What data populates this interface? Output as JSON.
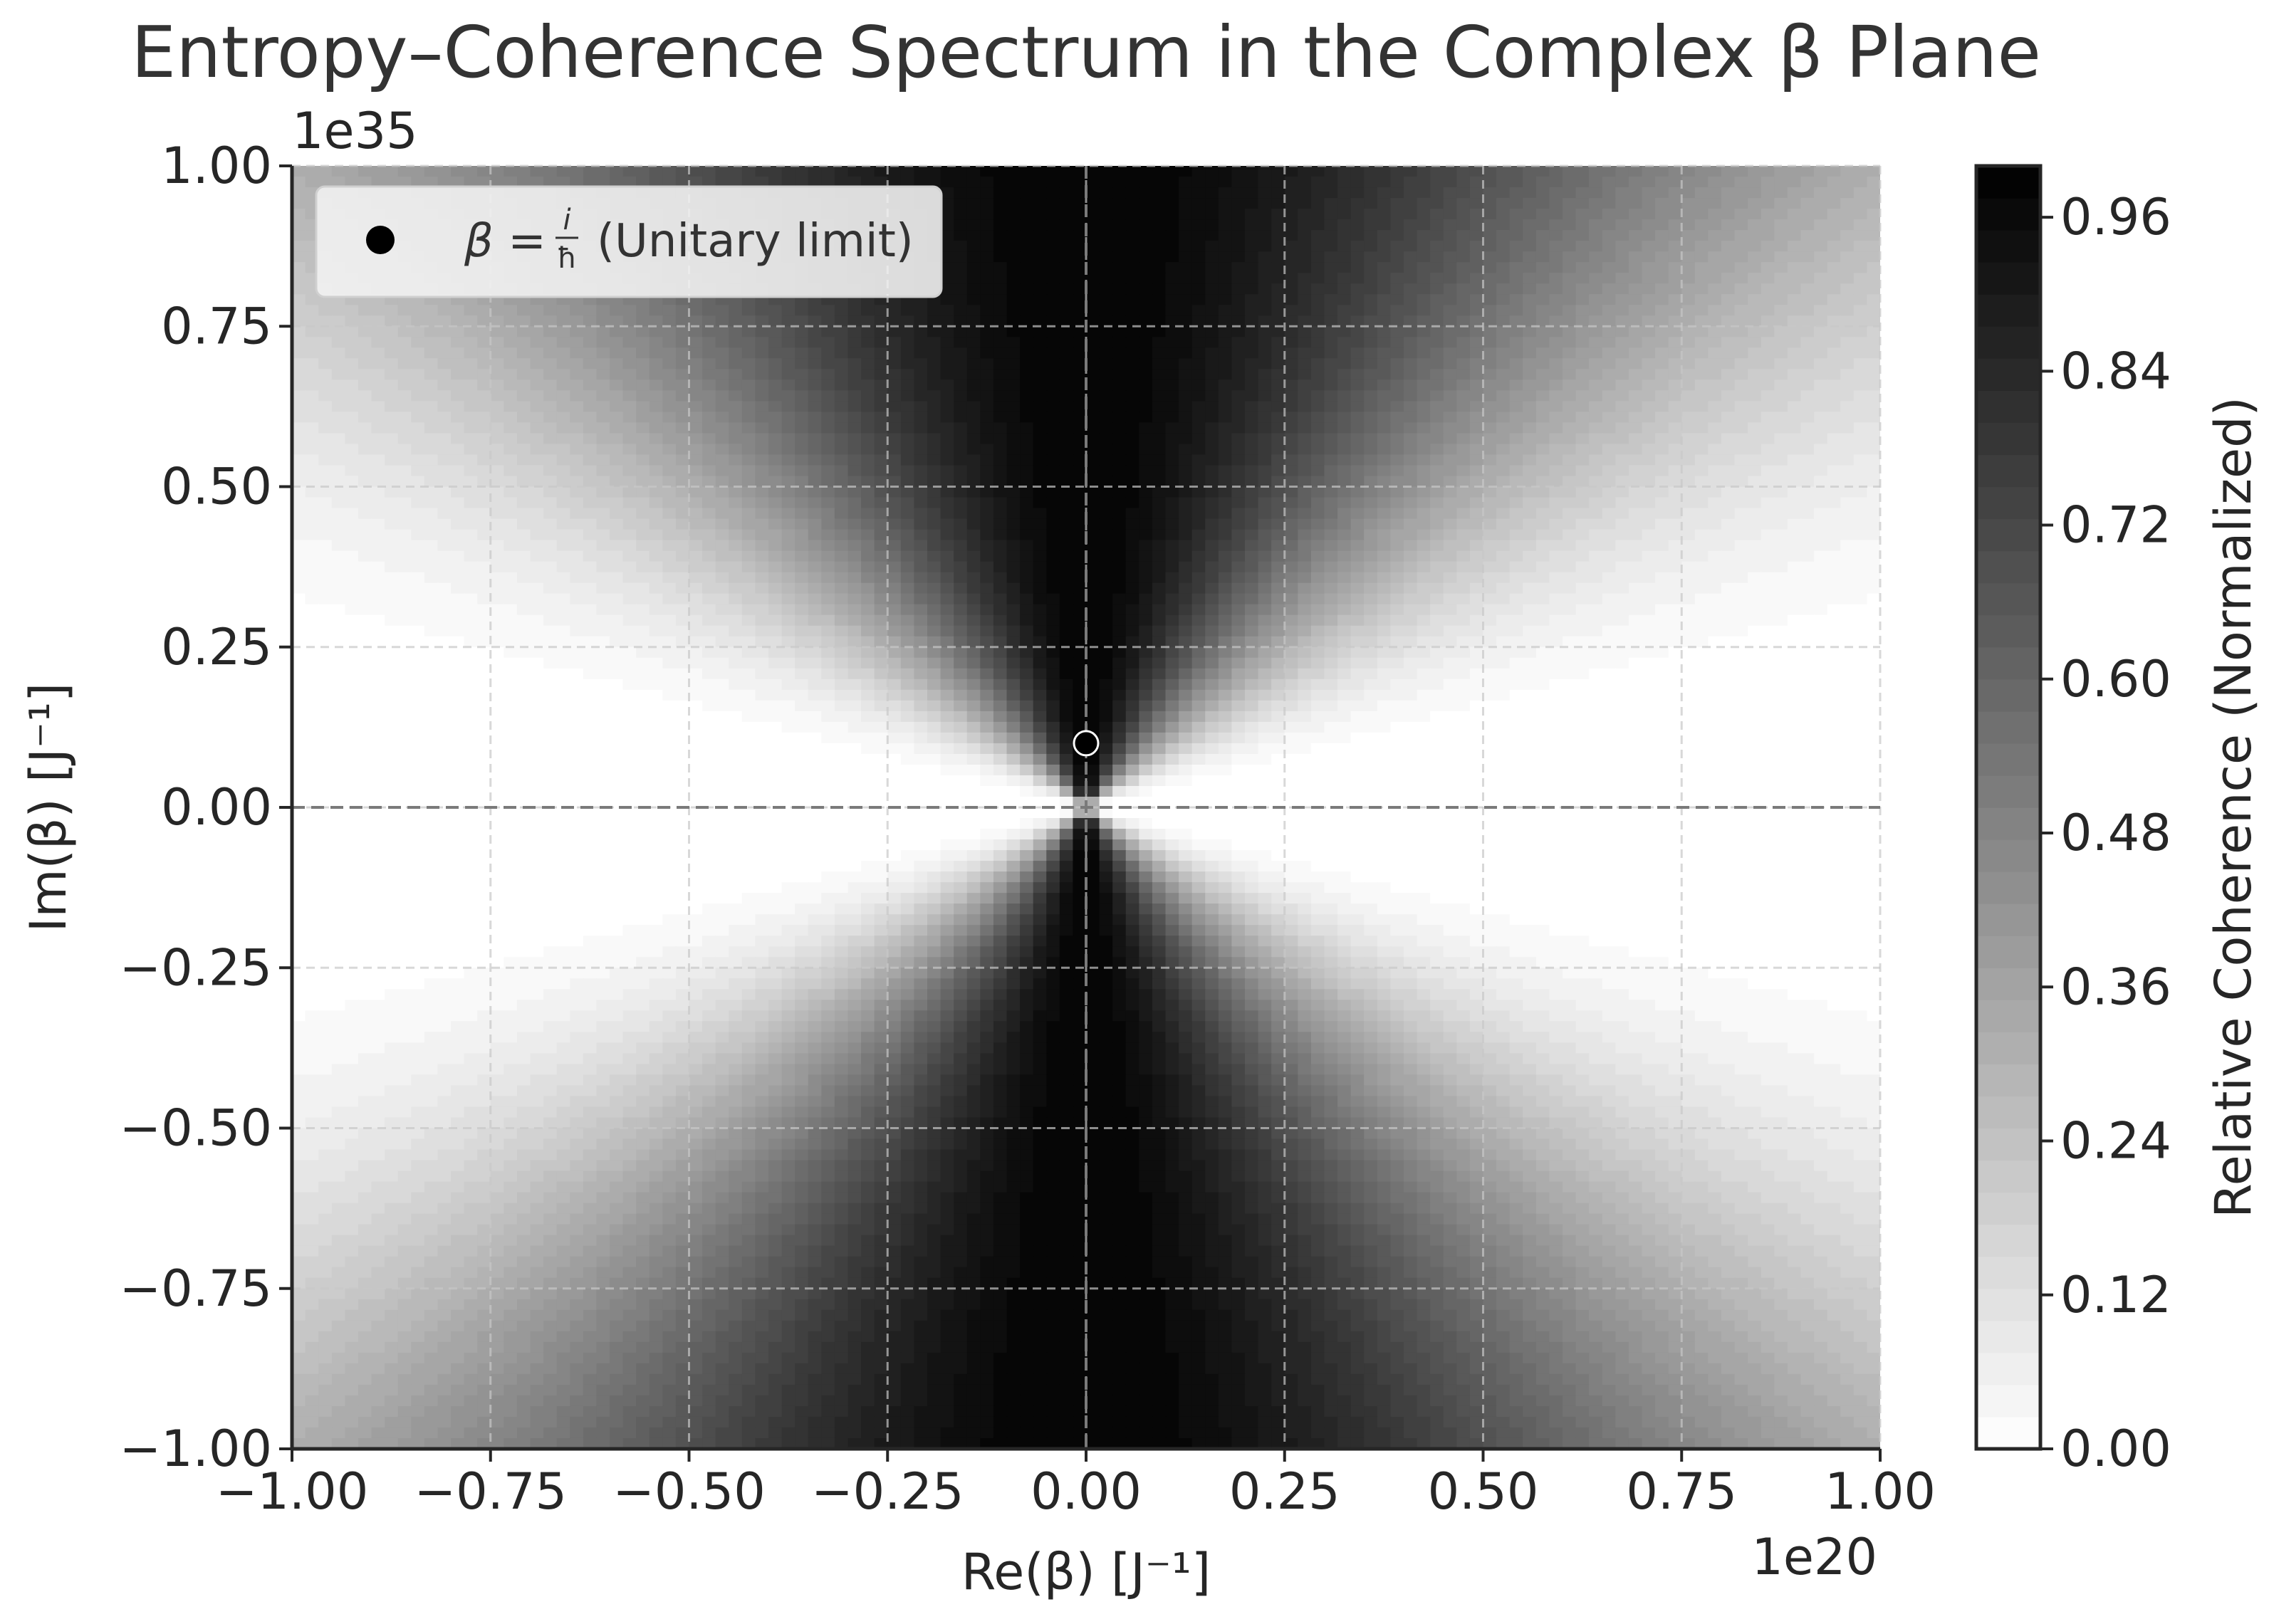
{
  "chart_data": {
    "type": "heatmap",
    "title": "Entropy–Coherence Spectrum in the Complex β Plane",
    "xlabel": "Re(β) [J⁻¹]",
    "ylabel": "Im(β) [J⁻¹]",
    "x_offset_text": "1e20",
    "y_offset_text": "1e35",
    "xlim": [
      -1e+20,
      1e+20
    ],
    "ylim": [
      -1e+35,
      1e+35
    ],
    "x_ticks": [
      -1.0,
      -0.75,
      -0.5,
      -0.25,
      0.0,
      0.25,
      0.5,
      0.75,
      1.0
    ],
    "x_tick_labels": [
      "−1.00",
      "−0.75",
      "−0.50",
      "−0.25",
      "0.00",
      "0.25",
      "0.50",
      "0.75",
      "1.00"
    ],
    "y_ticks": [
      -1.0,
      -0.75,
      -0.5,
      -0.25,
      0.0,
      0.25,
      0.5,
      0.75,
      1.0
    ],
    "y_tick_labels": [
      "−1.00",
      "−0.75",
      "−0.50",
      "−0.25",
      "0.00",
      "0.25",
      "0.50",
      "0.75",
      "1.00"
    ],
    "colormap": "gray_r",
    "colorbar": {
      "label": "Relative Coherence (Normalized)",
      "range": [
        0.0,
        1.0
      ],
      "ticks": [
        0.0,
        0.12,
        0.24,
        0.36,
        0.48,
        0.6,
        0.72,
        0.84,
        0.96
      ],
      "tick_labels": [
        "0.00",
        "0.12",
        "0.24",
        "0.36",
        "0.48",
        "0.60",
        "0.72",
        "0.84",
        "0.96"
      ]
    },
    "field_profile": {
      "description_points": [
        {
          "re": 0.0,
          "im": 1.0,
          "value": 1.0
        },
        {
          "re": 0.0,
          "im": -1.0,
          "value": 1.0
        },
        {
          "re": 0.0,
          "im": 0.0,
          "value": 0.0
        },
        {
          "re": 1.0,
          "im": 1.0,
          "value": 0.3
        },
        {
          "re": -1.0,
          "im": -1.0,
          "value": 0.3
        },
        {
          "re": 1.0,
          "im": 0.0,
          "value": 0.1
        }
      ]
    },
    "marker": {
      "re": 0.0,
      "im": 1e+34,
      "color": "#000000",
      "legend_prefix": "β =",
      "legend_numerator": "i",
      "legend_denominator": "ħ",
      "legend_suffix": "(Unitary limit)"
    },
    "reference_lines": {
      "x": 0.0,
      "y": 0.0
    },
    "grid": true,
    "legend_position": "top-left"
  }
}
